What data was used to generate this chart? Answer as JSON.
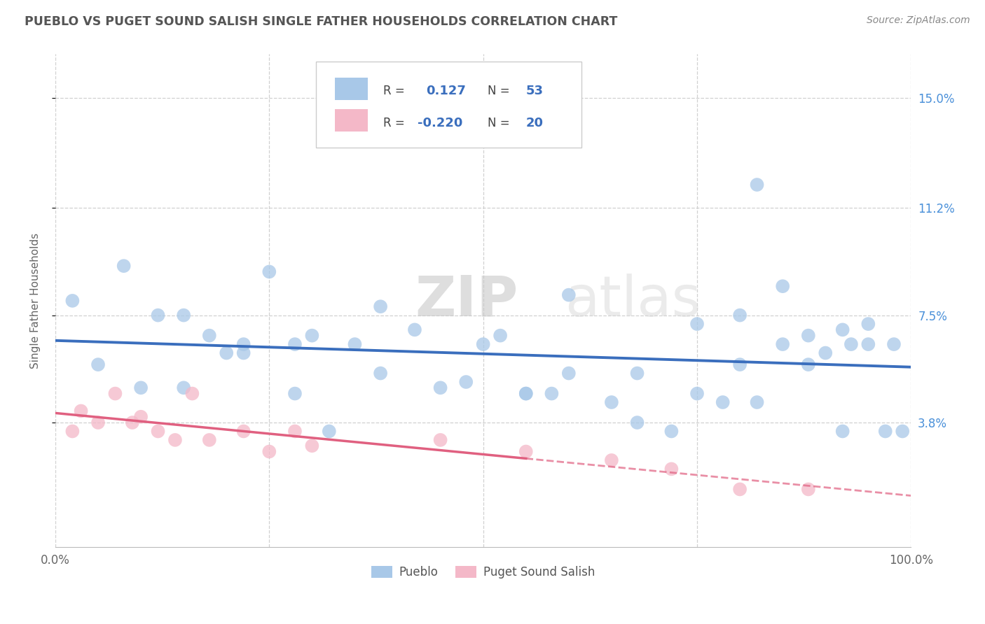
{
  "title": "PUEBLO VS PUGET SOUND SALISH SINGLE FATHER HOUSEHOLDS CORRELATION CHART",
  "source": "Source: ZipAtlas.com",
  "ylabel": "Single Father Households",
  "xlim": [
    0,
    100
  ],
  "ylim": [
    -0.5,
    16.5
  ],
  "yticks": [
    3.8,
    7.5,
    11.2,
    15.0
  ],
  "ytick_labels": [
    "3.8%",
    "7.5%",
    "11.2%",
    "15.0%"
  ],
  "background_color": "#ffffff",
  "grid_color": "#d0d0d0",
  "pueblo_color": "#a8c8e8",
  "puget_color": "#f4b8c8",
  "pueblo_line_color": "#3a6ebd",
  "puget_line_color": "#e06080",
  "R_pueblo": 0.127,
  "N_pueblo": 53,
  "R_puget": -0.22,
  "N_puget": 20,
  "legend_label_pueblo": "Pueblo",
  "legend_label_puget": "Puget Sound Salish",
  "watermark_zip": "ZIP",
  "watermark_atlas": "atlas",
  "pueblo_x": [
    2,
    8,
    12,
    15,
    18,
    20,
    22,
    25,
    28,
    30,
    35,
    38,
    42,
    48,
    52,
    55,
    58,
    60,
    65,
    68,
    72,
    75,
    78,
    80,
    82,
    85,
    88,
    90,
    92,
    93,
    95,
    97,
    99,
    5,
    10,
    15,
    22,
    28,
    32,
    38,
    45,
    50,
    55,
    60,
    68,
    75,
    80,
    85,
    88,
    92,
    95,
    98,
    82
  ],
  "pueblo_y": [
    8.0,
    9.2,
    7.5,
    7.5,
    6.8,
    6.2,
    6.5,
    9.0,
    6.5,
    6.8,
    6.5,
    7.8,
    7.0,
    5.2,
    6.8,
    4.8,
    4.8,
    8.2,
    4.5,
    3.8,
    3.5,
    4.8,
    4.5,
    7.5,
    4.5,
    8.5,
    6.8,
    6.2,
    3.5,
    6.5,
    7.2,
    3.5,
    3.5,
    5.8,
    5.0,
    5.0,
    6.2,
    4.8,
    3.5,
    5.5,
    5.0,
    6.5,
    4.8,
    5.5,
    5.5,
    7.2,
    5.8,
    6.5,
    5.8,
    7.0,
    6.5,
    6.5,
    12.0
  ],
  "puget_x": [
    2,
    3,
    5,
    7,
    9,
    10,
    12,
    14,
    16,
    18,
    22,
    25,
    28,
    30,
    45,
    55,
    65,
    72,
    80,
    88
  ],
  "puget_y": [
    3.5,
    4.2,
    3.8,
    4.8,
    3.8,
    4.0,
    3.5,
    3.2,
    4.8,
    3.2,
    3.5,
    2.8,
    3.5,
    3.0,
    3.2,
    2.8,
    2.5,
    2.2,
    1.5,
    1.5
  ]
}
